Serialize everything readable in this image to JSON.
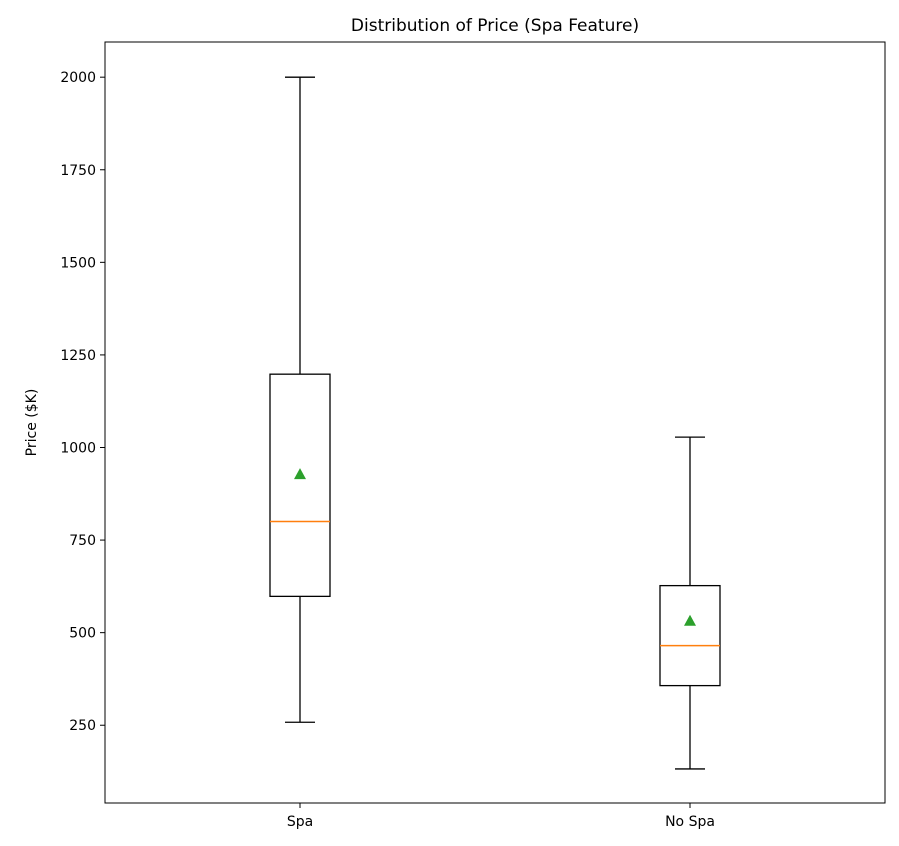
{
  "chart_data": {
    "type": "box",
    "title": "Distribution of Price (Spa Feature)",
    "xlabel": "",
    "ylabel": "Price ($K)",
    "categories": [
      "Spa",
      "No Spa"
    ],
    "boxes": [
      {
        "category": "Spa",
        "whisker_low": 258,
        "q1": 598,
        "median": 800,
        "q3": 1198,
        "whisker_high": 2000,
        "mean": 928
      },
      {
        "category": "No Spa",
        "whisker_low": 132,
        "q1": 357,
        "median": 465,
        "q3": 627,
        "whisker_high": 1028,
        "mean": 532
      }
    ],
    "ylim": [
      40,
      2095
    ],
    "yticks": [
      250,
      500,
      750,
      1000,
      1250,
      1500,
      1750,
      2000
    ],
    "grid": false,
    "colors": {
      "box": "#000000",
      "median": "#ff7f0e",
      "mean": "#2ca02c"
    }
  }
}
